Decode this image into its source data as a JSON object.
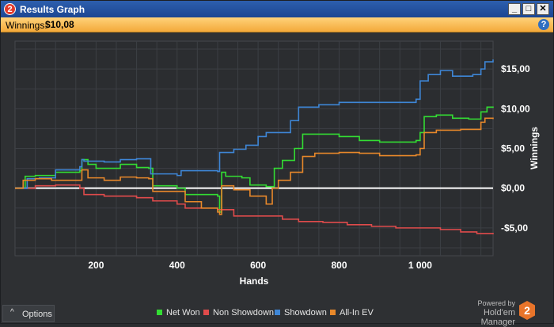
{
  "window": {
    "title": "Results Graph",
    "app_icon_text": "2",
    "controls": {
      "minimize": "_",
      "maximize": "□",
      "close": "✕"
    }
  },
  "infobar": {
    "label": "Winnings:",
    "value": "$10,08",
    "help_icon": "help-icon"
  },
  "footer": {
    "options_label": "Options",
    "options_icon": "chevron-up-icon",
    "powered_line1": "Powered by",
    "powered_line2": "Hold'em Manager"
  },
  "colors": {
    "net_won": "#33dd33",
    "non_showdown": "#e04b4b",
    "showdown": "#3e86d6",
    "all_in_ev": "#e8882a",
    "zero_line": "#ffffff",
    "plot_bg": "#2b2d30",
    "grid": "#3c3f44"
  },
  "chart_data": {
    "type": "line",
    "xlabel": "Hands",
    "ylabel": "Winnings",
    "xlim": [
      0,
      1180
    ],
    "ylim": [
      -8.5,
      18.5
    ],
    "x_ticks": [
      200,
      400,
      600,
      800,
      1000
    ],
    "x_tick_labels": [
      "200",
      "400",
      "600",
      "800",
      "1 000"
    ],
    "y_ticks": [
      15,
      10,
      5,
      0,
      -5
    ],
    "y_tick_labels": [
      "$15,00",
      "$10,00",
      "$5,00",
      "$0,00",
      "-$5,00"
    ],
    "grid": true,
    "legend_position": "bottom",
    "series": [
      {
        "name": "Net Won",
        "color": "#33dd33",
        "points": [
          [
            0,
            0
          ],
          [
            25,
            1.5
          ],
          [
            50,
            1.6
          ],
          [
            100,
            2.0
          ],
          [
            160,
            2.2
          ],
          [
            165,
            3.6
          ],
          [
            180,
            3.0
          ],
          [
            200,
            2.5
          ],
          [
            260,
            3.0
          ],
          [
            300,
            2.6
          ],
          [
            330,
            2.5
          ],
          [
            340,
            0.3
          ],
          [
            400,
            0.0
          ],
          [
            420,
            -0.8
          ],
          [
            460,
            -0.8
          ],
          [
            500,
            -1.0
          ],
          [
            505,
            -3.0
          ],
          [
            510,
            2.0
          ],
          [
            520,
            1.5
          ],
          [
            560,
            1.3
          ],
          [
            580,
            0.4
          ],
          [
            620,
            0.2
          ],
          [
            640,
            2.5
          ],
          [
            660,
            3.5
          ],
          [
            690,
            5.0
          ],
          [
            710,
            6.8
          ],
          [
            760,
            6.8
          ],
          [
            800,
            6.5
          ],
          [
            850,
            6.0
          ],
          [
            900,
            5.8
          ],
          [
            990,
            6.0
          ],
          [
            1000,
            7.0
          ],
          [
            1010,
            9.0
          ],
          [
            1040,
            9.2
          ],
          [
            1080,
            8.8
          ],
          [
            1120,
            8.7
          ],
          [
            1150,
            9.6
          ],
          [
            1165,
            10.2
          ],
          [
            1180,
            10.1
          ]
        ]
      },
      {
        "name": "Non Showdown",
        "color": "#e04b4b",
        "points": [
          [
            0,
            0
          ],
          [
            50,
            0.3
          ],
          [
            100,
            0.4
          ],
          [
            160,
            0.0
          ],
          [
            170,
            -0.8
          ],
          [
            220,
            -1.0
          ],
          [
            300,
            -1.2
          ],
          [
            340,
            -1.6
          ],
          [
            400,
            -2.0
          ],
          [
            420,
            -2.5
          ],
          [
            500,
            -2.7
          ],
          [
            540,
            -3.5
          ],
          [
            620,
            -3.5
          ],
          [
            660,
            -3.9
          ],
          [
            700,
            -4.2
          ],
          [
            760,
            -4.3
          ],
          [
            820,
            -4.6
          ],
          [
            880,
            -4.8
          ],
          [
            940,
            -5.0
          ],
          [
            1000,
            -5.0
          ],
          [
            1050,
            -5.2
          ],
          [
            1100,
            -5.5
          ],
          [
            1140,
            -5.7
          ],
          [
            1180,
            -5.8
          ]
        ]
      },
      {
        "name": "Showdown",
        "color": "#3e86d6",
        "points": [
          [
            0,
            0
          ],
          [
            30,
            1.2
          ],
          [
            60,
            1.3
          ],
          [
            100,
            2.3
          ],
          [
            160,
            2.7
          ],
          [
            165,
            3.6
          ],
          [
            170,
            3.4
          ],
          [
            220,
            3.3
          ],
          [
            260,
            3.6
          ],
          [
            300,
            3.7
          ],
          [
            330,
            3.7
          ],
          [
            335,
            1.8
          ],
          [
            400,
            1.6
          ],
          [
            410,
            2.2
          ],
          [
            450,
            2.2
          ],
          [
            500,
            2.1
          ],
          [
            505,
            4.5
          ],
          [
            540,
            4.9
          ],
          [
            570,
            5.4
          ],
          [
            600,
            6.5
          ],
          [
            620,
            7.0
          ],
          [
            640,
            7.0
          ],
          [
            680,
            8.5
          ],
          [
            700,
            10.2
          ],
          [
            750,
            10.5
          ],
          [
            800,
            10.8
          ],
          [
            850,
            10.8
          ],
          [
            900,
            10.8
          ],
          [
            990,
            11.2
          ],
          [
            1000,
            13.5
          ],
          [
            1020,
            14.3
          ],
          [
            1050,
            14.8
          ],
          [
            1080,
            14.1
          ],
          [
            1130,
            14.3
          ],
          [
            1150,
            15.0
          ],
          [
            1160,
            15.9
          ],
          [
            1180,
            16.2
          ]
        ]
      },
      {
        "name": "All-In EV",
        "color": "#e8882a",
        "points": [
          [
            0,
            0
          ],
          [
            20,
            1.0
          ],
          [
            50,
            1.2
          ],
          [
            90,
            1.0
          ],
          [
            160,
            1.0
          ],
          [
            165,
            2.3
          ],
          [
            180,
            1.3
          ],
          [
            220,
            1.0
          ],
          [
            260,
            1.4
          ],
          [
            300,
            1.3
          ],
          [
            330,
            1.2
          ],
          [
            340,
            -0.4
          ],
          [
            400,
            -0.4
          ],
          [
            420,
            -1.7
          ],
          [
            460,
            -2.5
          ],
          [
            500,
            -3.0
          ],
          [
            505,
            -3.3
          ],
          [
            510,
            0.3
          ],
          [
            540,
            -0.2
          ],
          [
            580,
            -1.0
          ],
          [
            620,
            -2.0
          ],
          [
            635,
            0.0
          ],
          [
            650,
            1.0
          ],
          [
            680,
            2.0
          ],
          [
            710,
            4.0
          ],
          [
            740,
            4.4
          ],
          [
            800,
            4.5
          ],
          [
            850,
            4.4
          ],
          [
            900,
            4.1
          ],
          [
            990,
            4.2
          ],
          [
            1000,
            5.0
          ],
          [
            1010,
            7.0
          ],
          [
            1040,
            7.3
          ],
          [
            1100,
            7.4
          ],
          [
            1150,
            8.3
          ],
          [
            1160,
            8.8
          ],
          [
            1180,
            8.7
          ]
        ]
      }
    ]
  }
}
